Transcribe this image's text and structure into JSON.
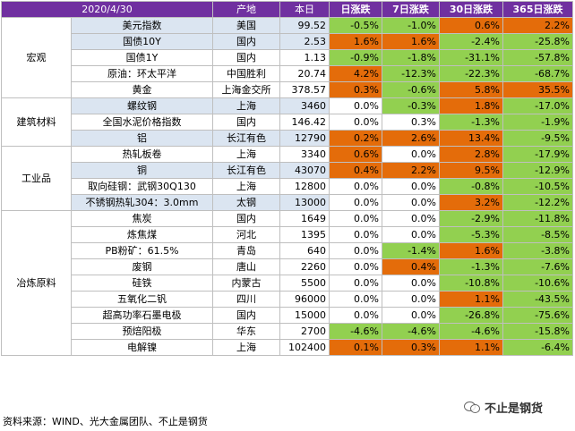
{
  "header": {
    "date": "2020/4/30",
    "col_place": "产地",
    "col_today": "本日",
    "col_day": "日涨跌",
    "col_7d": "7日涨跌",
    "col_30d": "30日涨跌",
    "col_365d": "365日涨跌"
  },
  "colors": {
    "header": "#7030a0",
    "up": "#e46c0a",
    "down": "#92d050",
    "tint": "#dbe5f1"
  },
  "sections": [
    {
      "category": "宏观",
      "rows": [
        {
          "name": "美元指数",
          "place": "美国",
          "value": "99.52",
          "d1": "-0.5%",
          "d7": "-1.0%",
          "d30": "0.6%",
          "d365": "2.2%"
        },
        {
          "name": "国债10Y",
          "place": "国内",
          "value": "2.53",
          "d1": "1.6%",
          "d7": "1.6%",
          "d30": "-2.4%",
          "d365": "-25.8%"
        },
        {
          "name": "国债1Y",
          "place": "国内",
          "value": "1.13",
          "d1": "-0.9%",
          "d7": "-1.8%",
          "d30": "-31.1%",
          "d365": "-57.8%"
        },
        {
          "name": "原油：环太平洋",
          "place": "中国胜利",
          "value": "20.74",
          "d1": "4.2%",
          "d7": "-12.3%",
          "d30": "-22.3%",
          "d365": "-68.7%"
        },
        {
          "name": "黄金",
          "place": "上海金交所",
          "value": "378.57",
          "d1": "0.3%",
          "d7": "-0.6%",
          "d30": "5.8%",
          "d365": "35.5%"
        }
      ]
    },
    {
      "category": "建筑材料",
      "rows": [
        {
          "name": "螺纹钢",
          "place": "上海",
          "value": "3460",
          "d1": "0.0%",
          "d7": "-0.3%",
          "d30": "1.8%",
          "d365": "-17.0%"
        },
        {
          "name": "全国水泥价格指数",
          "place": "国内",
          "value": "146.42",
          "d1": "0.0%",
          "d7": "0.3%",
          "d30": "-1.3%",
          "d365": "-1.9%"
        },
        {
          "name": "铝",
          "place": "长江有色",
          "value": "12790",
          "d1": "0.2%",
          "d7": "2.6%",
          "d30": "13.4%",
          "d365": "-9.5%"
        }
      ]
    },
    {
      "category": "工业品",
      "rows": [
        {
          "name": "热轧板卷",
          "place": "上海",
          "value": "3340",
          "d1": "0.6%",
          "d7": "0.0%",
          "d30": "2.8%",
          "d365": "-17.9%"
        },
        {
          "name": "铜",
          "place": "长江有色",
          "value": "43070",
          "d1": "0.4%",
          "d7": "2.2%",
          "d30": "9.5%",
          "d365": "-12.9%"
        },
        {
          "name": "取向硅钢：武钢30Q130",
          "place": "上海",
          "value": "12800",
          "d1": "0.0%",
          "d7": "0.0%",
          "d30": "-0.8%",
          "d365": "-10.5%"
        },
        {
          "name": "不锈钢热轧304：3.0mm",
          "place": "太钢",
          "value": "13000",
          "d1": "0.0%",
          "d7": "0.0%",
          "d30": "3.2%",
          "d365": "-12.2%"
        }
      ]
    },
    {
      "category": "冶炼原料",
      "rows": [
        {
          "name": "焦炭",
          "place": "国内",
          "value": "1649",
          "d1": "0.0%",
          "d7": "0.0%",
          "d30": "-2.9%",
          "d365": "-11.8%"
        },
        {
          "name": "炼焦煤",
          "place": "河北",
          "value": "1395",
          "d1": "0.0%",
          "d7": "0.0%",
          "d30": "-5.3%",
          "d365": "-8.5%"
        },
        {
          "name": "PB粉矿：61.5%",
          "place": "青岛",
          "value": "640",
          "d1": "0.0%",
          "d7": "-1.4%",
          "d30": "1.6%",
          "d365": "-3.8%"
        },
        {
          "name": "废钢",
          "place": "唐山",
          "value": "2260",
          "d1": "0.0%",
          "d7": "0.4%",
          "d30": "-1.3%",
          "d365": "-7.6%"
        },
        {
          "name": "硅铁",
          "place": "内蒙古",
          "value": "5500",
          "d1": "0.0%",
          "d7": "0.0%",
          "d30": "-10.8%",
          "d365": "-10.6%"
        },
        {
          "name": "五氧化二钒",
          "place": "四川",
          "value": "96000",
          "d1": "0.0%",
          "d7": "0.0%",
          "d30": "1.1%",
          "d365": "-43.5%"
        },
        {
          "name": "超高功率石墨电极",
          "place": "国内",
          "value": "15000",
          "d1": "0.0%",
          "d7": "0.0%",
          "d30": "-26.8%",
          "d365": "-75.6%"
        },
        {
          "name": "预焙阳极",
          "place": "华东",
          "value": "2700",
          "d1": "-4.6%",
          "d7": "-4.6%",
          "d30": "-4.6%",
          "d365": "-15.8%"
        },
        {
          "name": "电解镍",
          "place": "上海",
          "value": "102400",
          "d1": "0.1%",
          "d7": "0.3%",
          "d30": "1.1%",
          "d365": "-6.4%"
        }
      ]
    }
  ],
  "footnote": "资料来源：WIND、光大金属团队、不止是钢货",
  "watermark": {
    "icon": "wechat-icon",
    "text": "不止是钢货"
  }
}
